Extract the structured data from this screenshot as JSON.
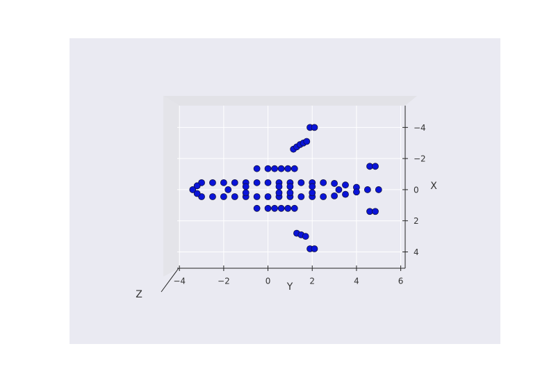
{
  "chart_data": {
    "type": "scatter3d",
    "xlabel": "Y",
    "ylabel": "X",
    "zlabel": "Z",
    "xlim": [
      -4.1,
      6.2
    ],
    "ylim": [
      -5.4,
      5.05
    ],
    "y_inverted": true,
    "grid": true,
    "xticks": [
      {
        "value": -4,
        "label": "−4"
      },
      {
        "value": -2,
        "label": "−2"
      },
      0,
      2,
      4,
      6
    ],
    "yticks": [
      {
        "value": -4,
        "label": "−4"
      },
      {
        "value": -2,
        "label": "−2"
      },
      0,
      2,
      4
    ],
    "series": [
      {
        "color": "#0a14d8",
        "x": [
          -3,
          -2.5,
          -2,
          -1.5,
          -1,
          -0.5,
          0,
          0.5,
          1,
          1.5,
          2,
          2.5,
          3,
          -3,
          -2.5,
          -2,
          -1.5,
          -1,
          -0.5,
          0,
          0.5,
          1,
          1.5,
          2,
          2.5,
          3,
          -3.4,
          -3.2,
          -3.2,
          3.5,
          3.5,
          4,
          4,
          4.5,
          5,
          -1,
          -1,
          0.5,
          0.5,
          1,
          1,
          2,
          2,
          -1.8,
          3.2,
          -0.5,
          0,
          0.3,
          0.6,
          0.9,
          1.2,
          -0.5,
          0,
          0.3,
          0.6,
          0.9,
          1.2,
          1.15,
          1.3,
          1.45,
          1.6,
          1.75,
          1.9,
          2.1,
          1.3,
          1.5,
          1.7,
          1.9,
          2.1,
          4.6,
          4.85,
          4.6,
          4.85
        ],
        "y": [
          -0.45,
          -0.45,
          -0.45,
          -0.45,
          -0.45,
          -0.45,
          -0.45,
          -0.45,
          -0.45,
          -0.45,
          -0.45,
          -0.45,
          -0.4,
          0.45,
          0.45,
          0.45,
          0.45,
          0.45,
          0.45,
          0.45,
          0.45,
          0.45,
          0.45,
          0.45,
          0.45,
          0.4,
          0,
          -0.25,
          0.25,
          -0.3,
          0.3,
          -0.15,
          0.15,
          0,
          0,
          -0.2,
          0.2,
          -0.2,
          0.2,
          -0.2,
          0.2,
          -0.2,
          0.2,
          0,
          0,
          -1.35,
          -1.35,
          -1.35,
          -1.35,
          -1.35,
          -1.35,
          1.2,
          1.2,
          1.2,
          1.2,
          1.2,
          1.2,
          -2.6,
          -2.75,
          -2.9,
          -3.0,
          -3.1,
          -4,
          -4,
          2.8,
          2.9,
          3.0,
          3.8,
          3.8,
          -1.5,
          -1.5,
          1.4,
          1.4
        ]
      }
    ]
  }
}
